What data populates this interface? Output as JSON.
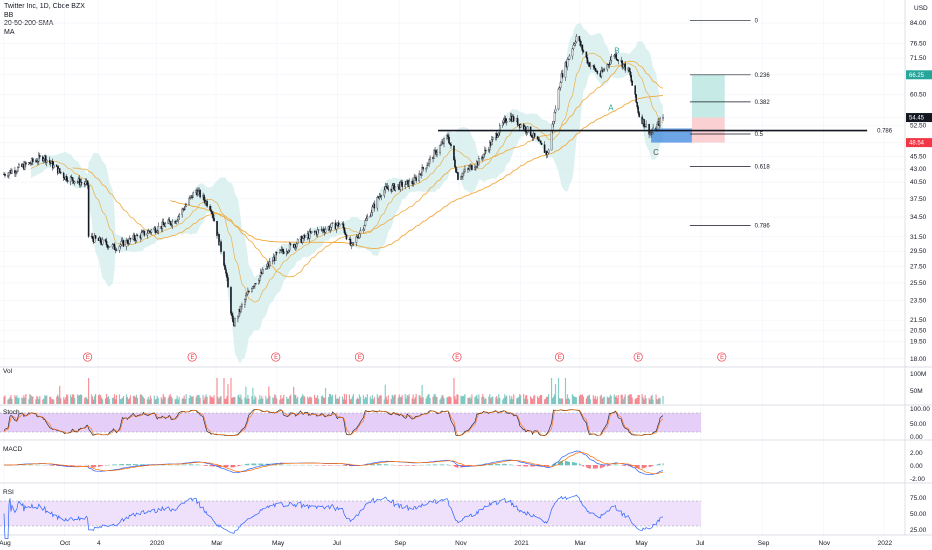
{
  "header": {
    "title": "Twitter Inc, 1D, Cboe BZX",
    "indicators": [
      "BB",
      "20-50-200-SMA",
      "MA"
    ],
    "currency": "USD"
  },
  "chart_data": {
    "type": "candlestick",
    "symbol": "Twitter Inc",
    "interval": "1D",
    "exchange": "Cboe BZX",
    "y_scale": "log",
    "ylim": [
      17.5,
      90
    ],
    "y_ticks": [
      "84.00",
      "76.50",
      "71.50",
      "66.25",
      "60.50",
      "54.45",
      "52.50",
      "48.54",
      "45.50",
      "43.00",
      "40.50",
      "37.50",
      "34.50",
      "31.50",
      "29.50",
      "27.50",
      "25.50",
      "23.50",
      "21.50",
      "20.50",
      "19.50",
      "18.00"
    ],
    "x_ticks": [
      "Aug",
      "Oct",
      "4",
      "2020",
      "Mar",
      "May",
      "Jul",
      "Sep",
      "Nov",
      "2021",
      "Mar",
      "May",
      "Jul",
      "Sep",
      "Nov",
      "2022"
    ],
    "price_path": [
      {
        "x": "2019-08-01",
        "y": 42.0
      },
      {
        "x": "2019-08-20",
        "y": 43.5
      },
      {
        "x": "2019-09-10",
        "y": 45.5
      },
      {
        "x": "2019-10-01",
        "y": 41.5
      },
      {
        "x": "2019-10-24",
        "y": 40.0
      },
      {
        "x": "2019-10-25",
        "y": 31.5
      },
      {
        "x": "2019-11-20",
        "y": 30.0
      },
      {
        "x": "2019-12-20",
        "y": 32.0
      },
      {
        "x": "2020-01-20",
        "y": 34.0
      },
      {
        "x": "2020-02-10",
        "y": 39.0
      },
      {
        "x": "2020-02-25",
        "y": 36.0
      },
      {
        "x": "2020-03-10",
        "y": 27.5
      },
      {
        "x": "2020-03-18",
        "y": 21.0
      },
      {
        "x": "2020-04-05",
        "y": 25.0
      },
      {
        "x": "2020-05-01",
        "y": 29.0
      },
      {
        "x": "2020-06-05",
        "y": 32.0
      },
      {
        "x": "2020-07-05",
        "y": 33.5
      },
      {
        "x": "2020-07-15",
        "y": 30.0
      },
      {
        "x": "2020-08-15",
        "y": 39.0
      },
      {
        "x": "2020-09-15",
        "y": 40.5
      },
      {
        "x": "2020-10-20",
        "y": 50.0
      },
      {
        "x": "2020-10-30",
        "y": 41.5
      },
      {
        "x": "2020-11-20",
        "y": 44.5
      },
      {
        "x": "2020-12-20",
        "y": 55.0
      },
      {
        "x": "2021-01-10",
        "y": 51.0
      },
      {
        "x": "2021-01-28",
        "y": 46.0
      },
      {
        "x": "2021-02-10",
        "y": 65.0
      },
      {
        "x": "2021-02-26",
        "y": 79.0
      },
      {
        "x": "2021-03-10",
        "y": 70.0
      },
      {
        "x": "2021-03-22",
        "y": 66.0
      },
      {
        "x": "2021-04-05",
        "y": 73.0
      },
      {
        "x": "2021-04-20",
        "y": 67.0
      },
      {
        "x": "2021-04-30",
        "y": 55.0
      },
      {
        "x": "2021-05-12",
        "y": 50.5
      },
      {
        "x": "2021-05-24",
        "y": 54.5
      }
    ],
    "series": [
      {
        "name": "Vol",
        "panel": "volume",
        "labels": [
          "100M",
          "50M"
        ]
      },
      {
        "name": "Stoch",
        "panel": "stoch",
        "labels": [
          "100.00",
          "50.00",
          "0.00"
        ]
      },
      {
        "name": "MACD",
        "panel": "macd",
        "labels": [
          "2.00",
          "0.00",
          "-2.00"
        ]
      },
      {
        "name": "RSI",
        "panel": "rsi",
        "labels": [
          "75.00",
          "50.00",
          "25.00"
        ]
      }
    ],
    "fibonacci": [
      {
        "level": "0",
        "price": 85.0
      },
      {
        "level": "0.236",
        "price": 66.25
      },
      {
        "level": "0.382",
        "price": 58.5
      },
      {
        "level": "0.5",
        "price": 50.5
      },
      {
        "level": "0.618",
        "price": 43.5
      },
      {
        "level": "0.786",
        "price": 33.2
      }
    ],
    "horizontal_line": {
      "price": 51.3,
      "label": "0.786"
    },
    "wave_labels": [
      "A",
      "B",
      "C"
    ],
    "price_tags": [
      {
        "price": 66.25,
        "color": "#26a69a"
      },
      {
        "price": 54.45,
        "color": "#131722"
      },
      {
        "price": 48.54,
        "color": "#f23645"
      }
    ],
    "earnings_marker": "E",
    "grid": true
  },
  "colors": {
    "bullish": "#131722",
    "bbfill": "#d7eeee",
    "sma": "#f2a93b",
    "ma": "#e8b04a",
    "fib": "#131722",
    "target": "#c6ebe6",
    "stop": "#fbd0d3",
    "entry": "#4a8fe0",
    "stoch_band": "#e5cff9",
    "rsi_band": "#efe0fb",
    "vol_up": "#26a69a",
    "vol_down": "#f23645",
    "macd_line": "#2962ff",
    "signal_line": "#ff6d00"
  }
}
